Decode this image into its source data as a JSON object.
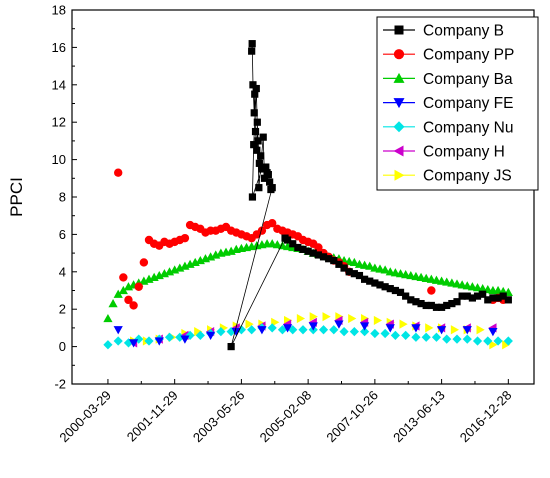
{
  "chart_data": {
    "type": "scatter",
    "ylabel": "PPCI",
    "ylim": [
      -2,
      18
    ],
    "yticks": [
      -2,
      0,
      2,
      4,
      6,
      8,
      10,
      12,
      14,
      16,
      18
    ],
    "x_tick_labels": [
      "2000-03-29",
      "2001-11-29",
      "2003-05-26",
      "2005-02-08",
      "2007-10-26",
      "2013-06-13",
      "2016-12-28"
    ],
    "legend_position": "top-right",
    "series": [
      {
        "name": "Company B",
        "marker": "square",
        "color": "#000000",
        "line": true,
        "x": [
          5.6,
          5.62,
          5.65,
          5.7,
          5.72,
          5.75,
          5.8,
          5.82,
          5.85,
          5.9,
          5.95,
          6.0,
          5.63,
          5.68,
          5.78,
          5.88,
          6.05,
          6.1,
          6.15,
          6.2,
          6.25,
          6.3,
          6.35,
          6.4,
          4.8,
          6.9,
          7.0,
          7.2,
          7.4,
          7.6,
          7.8,
          8.0,
          8.2,
          8.4,
          8.6,
          8.8,
          9.0,
          9.2,
          9.4,
          9.6,
          9.8,
          10.0,
          10.2,
          10.4,
          10.6,
          10.8,
          11.0,
          11.2,
          11.4,
          11.6,
          11.8,
          12.0,
          12.2,
          12.4,
          12.6,
          12.8,
          13.0,
          13.2,
          13.4,
          13.6,
          13.8,
          14.0,
          14.2,
          14.4,
          14.6,
          14.8,
          15.0,
          15.2,
          15.4,
          15.6
        ],
        "y": [
          15.8,
          16.2,
          14.0,
          12.5,
          13.5,
          11.5,
          10.5,
          12.0,
          11.0,
          9.8,
          10.2,
          9.5,
          8.0,
          10.8,
          13.8,
          8.5,
          11.2,
          9.0,
          9.6,
          9.3,
          9.2,
          8.8,
          8.4,
          8.5,
          0.0,
          5.8,
          5.7,
          5.5,
          5.3,
          5.2,
          5.1,
          5.0,
          4.9,
          4.8,
          4.7,
          4.6,
          4.4,
          4.2,
          4.0,
          3.9,
          3.8,
          3.6,
          3.5,
          3.4,
          3.3,
          3.2,
          3.1,
          3.0,
          2.9,
          2.7,
          2.5,
          2.4,
          2.3,
          2.2,
          2.2,
          2.1,
          2.1,
          2.2,
          2.3,
          2.4,
          2.7,
          2.7,
          2.6,
          2.7,
          2.8,
          2.5,
          2.6,
          2.6,
          2.7,
          2.5
        ]
      },
      {
        "name": "Company PP",
        "marker": "circle",
        "color": "#ff0000",
        "line": false,
        "x": [
          0.4,
          0.6,
          0.8,
          1.0,
          1.2,
          1.4,
          1.6,
          1.8,
          2.0,
          2.2,
          2.4,
          2.6,
          2.8,
          3.0,
          3.2,
          3.4,
          3.6,
          3.8,
          4.0,
          4.2,
          4.4,
          4.6,
          4.8,
          5.0,
          5.2,
          5.4,
          5.6,
          5.8,
          6.0,
          6.2,
          6.4,
          6.6,
          6.8,
          7.0,
          7.2,
          7.4,
          7.6,
          7.8,
          8.0,
          8.2,
          8.4,
          8.6,
          8.8,
          9.0,
          9.2,
          9.4,
          12.6,
          15.0,
          15.2,
          15.4
        ],
        "y": [
          9.3,
          3.7,
          2.5,
          2.2,
          3.2,
          4.5,
          5.7,
          5.5,
          5.4,
          5.6,
          5.5,
          5.6,
          5.7,
          5.8,
          6.5,
          6.4,
          6.3,
          6.1,
          6.2,
          6.2,
          6.3,
          6.4,
          6.2,
          6.1,
          6.0,
          5.9,
          5.8,
          6.0,
          6.2,
          6.5,
          6.6,
          6.3,
          6.2,
          6.1,
          6.0,
          5.9,
          5.7,
          5.6,
          5.5,
          5.3,
          5.0,
          4.8,
          4.6,
          4.5,
          4.3,
          4.0,
          3.0,
          2.5,
          2.6,
          2.5
        ]
      },
      {
        "name": "Company Ba",
        "marker": "triangle-up",
        "color": "#00cc00",
        "line": false,
        "x": [
          0.0,
          0.2,
          0.4,
          0.6,
          0.8,
          1.0,
          1.2,
          1.4,
          1.6,
          1.8,
          2.0,
          2.2,
          2.4,
          2.6,
          2.8,
          3.0,
          3.2,
          3.4,
          3.6,
          3.8,
          4.0,
          4.2,
          4.4,
          4.6,
          4.8,
          5.0,
          5.2,
          5.4,
          5.6,
          5.8,
          6.0,
          6.2,
          6.4,
          6.6,
          6.8,
          7.0,
          7.2,
          7.4,
          7.6,
          7.8,
          8.0,
          8.2,
          8.4,
          8.6,
          8.8,
          9.0,
          9.2,
          9.4,
          9.6,
          9.8,
          10.0,
          10.2,
          10.4,
          10.6,
          10.8,
          11.0,
          11.2,
          11.4,
          11.6,
          11.8,
          12.0,
          12.2,
          12.4,
          12.6,
          12.8,
          13.0,
          13.2,
          13.4,
          13.6,
          13.8,
          14.0,
          14.2,
          14.4,
          14.6,
          14.8,
          15.0,
          15.2,
          15.4,
          15.6
        ],
        "y": [
          1.5,
          2.3,
          2.8,
          3.0,
          3.2,
          3.3,
          3.4,
          3.5,
          3.6,
          3.7,
          3.8,
          3.9,
          4.0,
          4.1,
          4.2,
          4.3,
          4.4,
          4.5,
          4.6,
          4.7,
          4.8,
          4.9,
          5.0,
          5.05,
          5.1,
          5.2,
          5.25,
          5.3,
          5.35,
          5.4,
          5.45,
          5.5,
          5.5,
          5.45,
          5.4,
          5.35,
          5.3,
          5.25,
          5.2,
          5.1,
          5.0,
          4.95,
          4.9,
          4.8,
          4.75,
          4.7,
          4.6,
          4.55,
          4.5,
          4.4,
          4.35,
          4.3,
          4.2,
          4.15,
          4.1,
          4.0,
          3.95,
          3.9,
          3.85,
          3.8,
          3.75,
          3.7,
          3.65,
          3.6,
          3.55,
          3.5,
          3.45,
          3.4,
          3.35,
          3.3,
          3.25,
          3.2,
          3.15,
          3.1,
          3.05,
          3.0,
          3.0,
          2.95,
          2.9
        ]
      },
      {
        "name": "Company FE",
        "marker": "triangle-down",
        "color": "#0000ff",
        "line": false,
        "x": [
          0.4,
          1.0,
          2.0,
          3.0,
          4.0,
          5.0,
          6.0,
          7.0,
          8.0,
          9.0,
          10.0,
          11.0,
          12.0,
          13.0,
          14.0,
          15.0
        ],
        "y": [
          0.9,
          0.2,
          0.3,
          0.4,
          0.6,
          0.8,
          0.9,
          1.0,
          1.1,
          1.2,
          1.1,
          1.0,
          1.0,
          0.9,
          0.9,
          0.8
        ]
      },
      {
        "name": "Company Nu",
        "marker": "diamond",
        "color": "#00e5e5",
        "line": false,
        "x": [
          0.0,
          0.4,
          0.8,
          1.2,
          1.6,
          2.0,
          2.4,
          2.8,
          3.2,
          3.6,
          4.0,
          4.4,
          4.8,
          5.2,
          5.6,
          6.0,
          6.4,
          6.8,
          7.2,
          7.6,
          8.0,
          8.4,
          8.8,
          9.2,
          9.6,
          10.0,
          10.4,
          10.8,
          11.2,
          11.6,
          12.0,
          12.4,
          12.8,
          13.2,
          13.6,
          14.0,
          14.4,
          14.8,
          15.2,
          15.6
        ],
        "y": [
          0.1,
          0.3,
          0.2,
          0.4,
          0.3,
          0.4,
          0.5,
          0.5,
          0.6,
          0.6,
          0.7,
          0.8,
          0.8,
          0.9,
          0.9,
          1.0,
          1.0,
          0.9,
          0.9,
          0.9,
          0.9,
          0.9,
          0.9,
          0.8,
          0.8,
          0.8,
          0.7,
          0.7,
          0.6,
          0.6,
          0.5,
          0.5,
          0.5,
          0.4,
          0.4,
          0.4,
          0.3,
          0.3,
          0.3,
          0.3
        ]
      },
      {
        "name": "Company H",
        "marker": "triangle-left",
        "color": "#cc00cc",
        "line": false,
        "x": [
          1.0,
          2.0,
          3.0,
          4.0,
          5.0,
          6.0,
          7.0,
          8.0,
          9.0,
          10.0,
          11.0,
          12.0,
          13.0,
          14.0,
          15.0
        ],
        "y": [
          0.2,
          0.4,
          0.6,
          0.8,
          1.0,
          1.1,
          1.2,
          1.3,
          1.4,
          1.3,
          1.2,
          1.1,
          1.0,
          1.0,
          1.0
        ]
      },
      {
        "name": "Company JS",
        "marker": "triangle-right",
        "color": "#ffff00",
        "line": false,
        "x": [
          1.0,
          1.5,
          2.0,
          2.5,
          3.0,
          3.5,
          4.0,
          4.5,
          5.0,
          5.5,
          6.0,
          6.5,
          7.0,
          7.5,
          8.0,
          8.5,
          9.0,
          9.5,
          10.0,
          10.5,
          11.0,
          11.5,
          12.0,
          12.5,
          13.0,
          13.5,
          14.0,
          14.5,
          15.0,
          15.5
        ],
        "y": [
          0.3,
          0.3,
          0.4,
          0.5,
          0.7,
          0.8,
          0.9,
          1.0,
          1.1,
          1.2,
          1.2,
          1.3,
          1.4,
          1.5,
          1.6,
          1.6,
          1.6,
          1.5,
          1.5,
          1.4,
          1.3,
          1.2,
          1.1,
          1.0,
          1.0,
          0.9,
          0.9,
          0.9,
          0.1,
          0.1
        ]
      }
    ]
  }
}
